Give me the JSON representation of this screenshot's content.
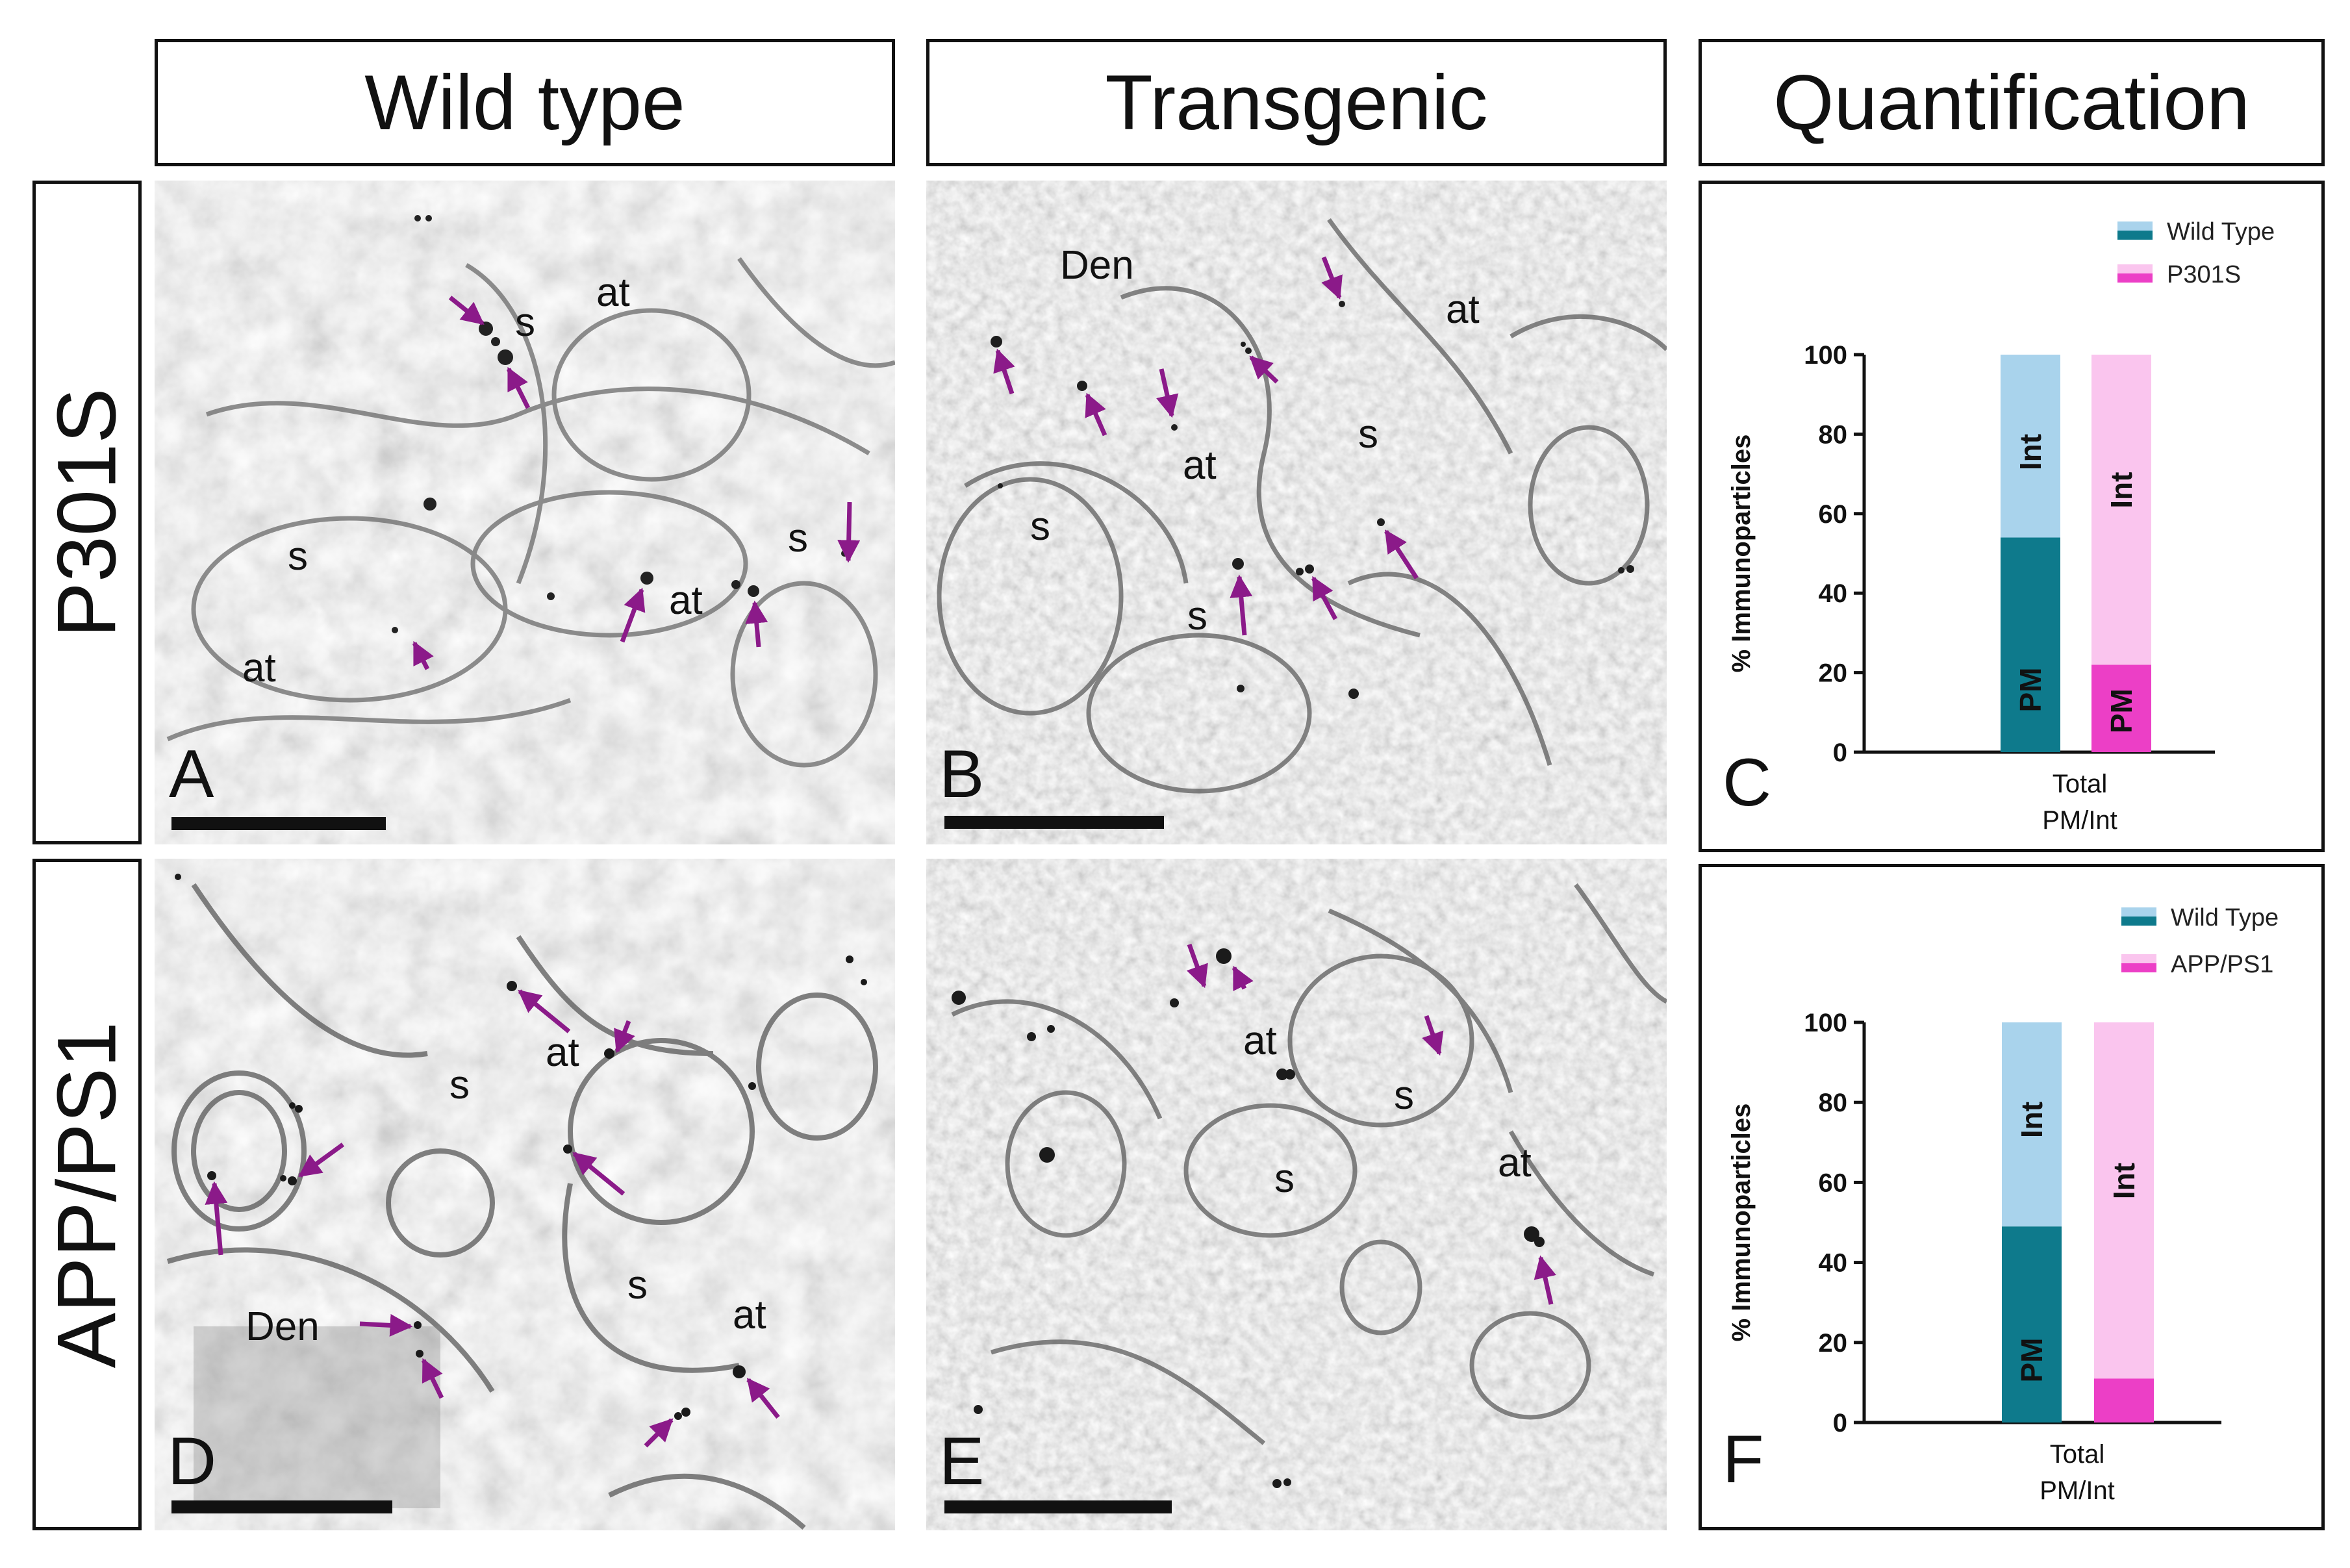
{
  "headers": {
    "wild_type": "Wild type",
    "transgenic": "Transgenic",
    "quantification": "Quantification"
  },
  "row_labels": {
    "p301s": "P301S",
    "app_ps1": "APP/PS1"
  },
  "panel_letters": {
    "a": "A",
    "b": "B",
    "c": "C",
    "d": "D",
    "e": "E",
    "f": "F"
  },
  "micrograph_labels": {
    "a": [
      "s",
      "at",
      "s",
      "at",
      "s",
      "at"
    ],
    "b": [
      "Den",
      "at",
      "s",
      "at",
      "s",
      "s"
    ],
    "d": [
      "s",
      "at",
      "Den",
      "s",
      "at"
    ],
    "e": [
      "at",
      "s",
      "s",
      "at"
    ]
  },
  "colors": {
    "arrow": "#8B1A89",
    "wt_pm": "#0E7A8C",
    "wt_int": "#A9D3EC",
    "tg_pm": "#EC3FC6",
    "tg_int": "#FAC5EE"
  },
  "chart_data": [
    {
      "type": "bar",
      "stacked": true,
      "xlabel": "Total\nPM/Int",
      "xlabel_lines": [
        "Total",
        "PM/Int"
      ],
      "ylabel": "% Immunoparticles",
      "ylim": [
        0,
        100
      ],
      "yticks": [
        "0",
        "20",
        "40",
        "60",
        "80",
        "100"
      ],
      "legend": [
        "Wild Type",
        "P301S"
      ],
      "legend_position": "top-right",
      "series": [
        {
          "name": "Wild Type",
          "PM": 54,
          "Int": 46,
          "pm_label": "PM",
          "int_label": "Int"
        },
        {
          "name": "P301S",
          "PM": 22,
          "Int": 78,
          "pm_label": "PM",
          "int_label": "Int"
        }
      ]
    },
    {
      "type": "bar",
      "stacked": true,
      "xlabel": "Total\nPM/Int",
      "xlabel_lines": [
        "Total",
        "PM/Int"
      ],
      "ylabel": "% Immunoparticles",
      "ylim": [
        0,
        100
      ],
      "yticks": [
        "0",
        "20",
        "40",
        "60",
        "80",
        "100"
      ],
      "legend": [
        "Wild Type",
        "APP/PS1"
      ],
      "legend_position": "top-right",
      "series": [
        {
          "name": "Wild Type",
          "PM": 49,
          "Int": 51,
          "pm_label": "PM",
          "int_label": "Int"
        },
        {
          "name": "APP/PS1",
          "PM": 11,
          "Int": 89,
          "pm_label": "",
          "int_label": "Int"
        }
      ]
    }
  ]
}
